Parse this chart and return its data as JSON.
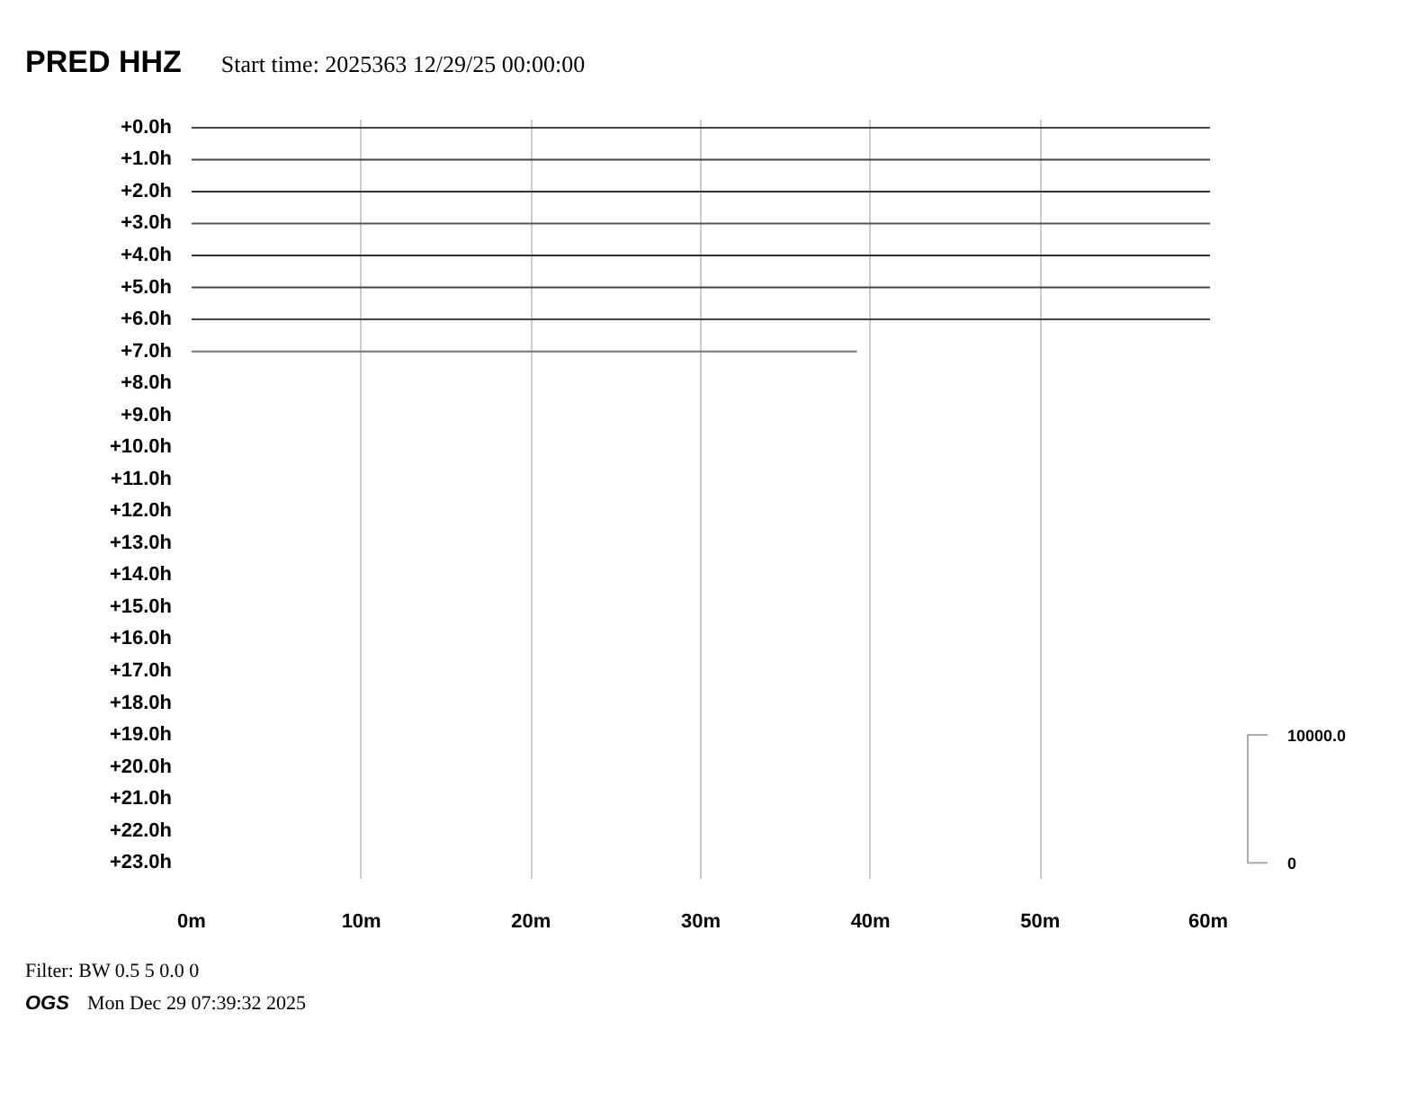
{
  "chart_data": {
    "type": "line",
    "title": "PRED HHZ",
    "subtitle": "Start time: 2025363 12/29/25 00:00:00",
    "annotations": [
      "10000.0",
      "0",
      "Filter: BW 0.5 5 0.0 0",
      "OGS",
      "Mon Dec 29 07:39:32 2025"
    ],
    "xlim": [
      0,
      60
    ],
    "xticks": [
      {
        "value": 0,
        "label": "0m"
      },
      {
        "value": 10,
        "label": "10m"
      },
      {
        "value": 20,
        "label": "20m"
      },
      {
        "value": 30,
        "label": "30m"
      },
      {
        "value": 40,
        "label": "40m"
      },
      {
        "value": 50,
        "label": "50m"
      },
      {
        "value": 60,
        "label": "60m"
      }
    ],
    "ylim": [
      23.5,
      -0.25
    ],
    "yticks": [
      {
        "value": 0,
        "label": "+0.0h"
      },
      {
        "value": 1,
        "label": "+1.0h"
      },
      {
        "value": 2,
        "label": "+2.0h"
      },
      {
        "value": 3,
        "label": "+3.0h"
      },
      {
        "value": 4,
        "label": "+4.0h"
      },
      {
        "value": 5,
        "label": "+5.0h"
      },
      {
        "value": 6,
        "label": "+6.0h"
      },
      {
        "value": 7,
        "label": "+7.0h"
      },
      {
        "value": 8,
        "label": "+8.0h"
      },
      {
        "value": 9,
        "label": "+9.0h"
      },
      {
        "value": 10,
        "label": "+10.0h"
      },
      {
        "value": 11,
        "label": "+11.0h"
      },
      {
        "value": 12,
        "label": "+12.0h"
      },
      {
        "value": 13,
        "label": "+13.0h"
      },
      {
        "value": 14,
        "label": "+14.0h"
      },
      {
        "value": 15,
        "label": "+15.0h"
      },
      {
        "value": 16,
        "label": "+16.0h"
      },
      {
        "value": 17,
        "label": "+17.0h"
      },
      {
        "value": 18,
        "label": "+18.0h"
      },
      {
        "value": 19,
        "label": "+19.0h"
      },
      {
        "value": 20,
        "label": "+20.0h"
      },
      {
        "value": 21,
        "label": "+21.0h"
      },
      {
        "value": 22,
        "label": "+22.0h"
      },
      {
        "value": 23,
        "label": "+23.0h"
      }
    ],
    "grid": "x",
    "series": [
      {
        "color": "#444444",
        "x": [
          0,
          60
        ],
        "values": [
          0,
          0
        ]
      },
      {
        "color": "#444444",
        "x": [
          0,
          60
        ],
        "values": [
          1,
          1
        ]
      },
      {
        "color": "#333333",
        "x": [
          0,
          60
        ],
        "values": [
          2,
          2
        ]
      },
      {
        "color": "#555555",
        "x": [
          0,
          60
        ],
        "values": [
          3,
          3
        ]
      },
      {
        "color": "#333333",
        "x": [
          0,
          60
        ],
        "values": [
          4,
          4
        ]
      },
      {
        "color": "#444444",
        "x": [
          0,
          60
        ],
        "values": [
          5,
          5
        ]
      },
      {
        "color": "#444444",
        "x": [
          0,
          60
        ],
        "values": [
          6,
          6
        ]
      },
      {
        "color": "#777777",
        "x": [
          0,
          39.2
        ],
        "values": [
          7,
          7
        ]
      }
    ]
  }
}
